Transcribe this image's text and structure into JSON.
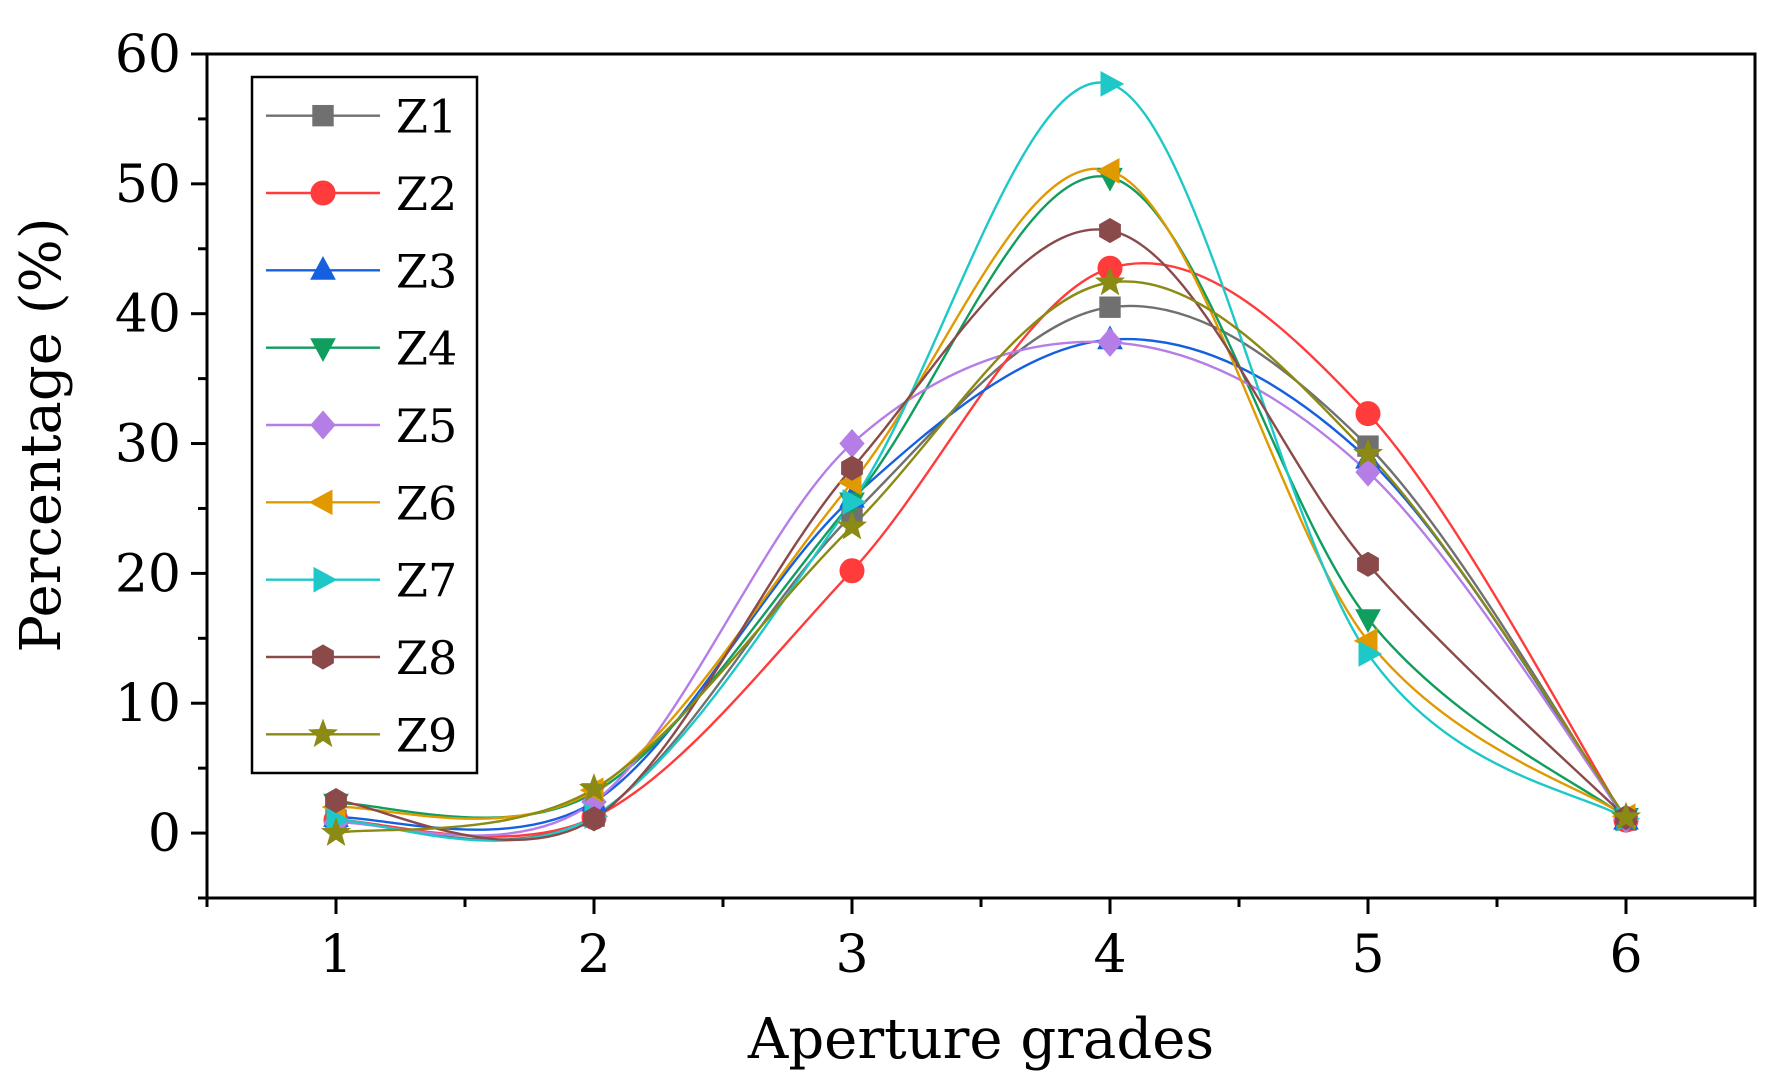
{
  "chart_data": {
    "type": "line",
    "title": "",
    "xlabel": "Aperture grades",
    "ylabel": "Percentage (%)",
    "xlim": [
      0.5,
      6.5
    ],
    "ylim": [
      -5,
      60
    ],
    "x_ticks": [
      1,
      2,
      3,
      4,
      5,
      6
    ],
    "y_ticks": [
      0,
      10,
      20,
      30,
      40,
      50,
      60
    ],
    "x": [
      1,
      2,
      3,
      4,
      5,
      6
    ],
    "grid": false,
    "smooth": true,
    "legend_position": "top-left",
    "series": [
      {
        "name": "Z1",
        "color": "#707070",
        "marker": "square",
        "values": [
          1.0,
          1.3,
          24.5,
          40.5,
          29.8,
          1.0
        ]
      },
      {
        "name": "Z2",
        "color": "#ff3b3b",
        "marker": "circle",
        "values": [
          1.0,
          1.2,
          20.2,
          43.5,
          32.3,
          1.0
        ]
      },
      {
        "name": "Z3",
        "color": "#1560e0",
        "marker": "triangle-up",
        "values": [
          1.2,
          2.4,
          25.8,
          38.0,
          28.8,
          1.0
        ]
      },
      {
        "name": "Z4",
        "color": "#0f9e5e",
        "marker": "triangle-down",
        "values": [
          2.3,
          3.1,
          25.5,
          50.5,
          16.5,
          1.2
        ]
      },
      {
        "name": "Z5",
        "color": "#b57de6",
        "marker": "diamond",
        "values": [
          0.8,
          2.4,
          30.0,
          37.8,
          27.8,
          1.1
        ]
      },
      {
        "name": "Z6",
        "color": "#e09a00",
        "marker": "triangle-left",
        "values": [
          2.0,
          3.3,
          27.0,
          51.0,
          14.8,
          1.3
        ]
      },
      {
        "name": "Z7",
        "color": "#1ec8c8",
        "marker": "triangle-right",
        "values": [
          1.0,
          1.3,
          25.5,
          57.7,
          13.8,
          1.1
        ]
      },
      {
        "name": "Z8",
        "color": "#8b4a4a",
        "marker": "hexagon",
        "values": [
          2.5,
          1.1,
          28.1,
          46.4,
          20.7,
          1.2
        ]
      },
      {
        "name": "Z9",
        "color": "#8a8a14",
        "marker": "star",
        "values": [
          0.0,
          3.4,
          23.6,
          42.4,
          29.2,
          1.2
        ]
      }
    ]
  }
}
